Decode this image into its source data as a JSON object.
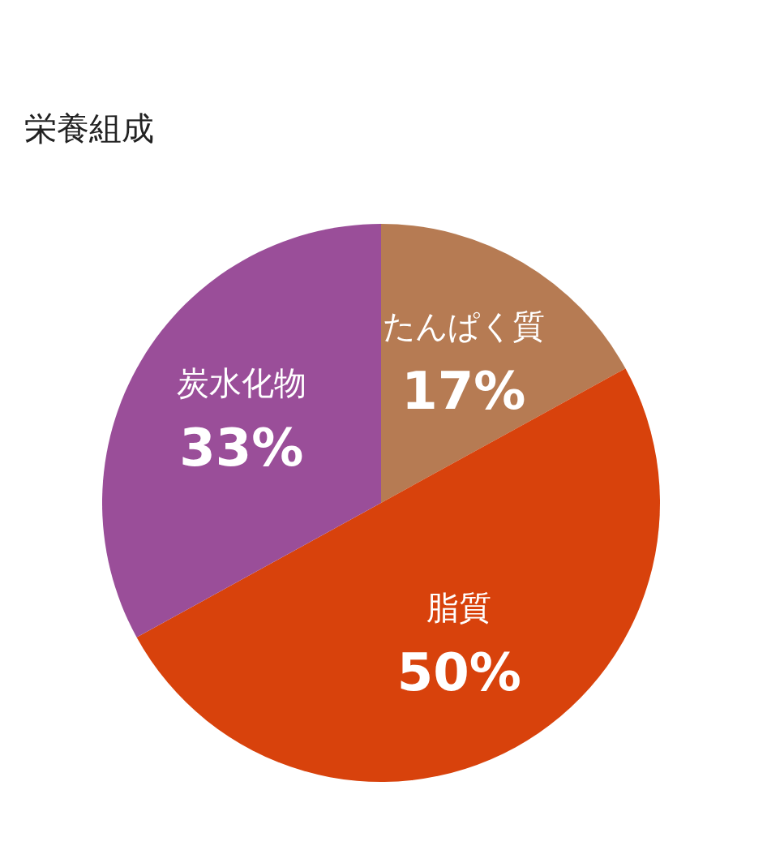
{
  "chart_data": {
    "type": "pie",
    "title": "栄養組成",
    "categories": [
      "たんぱく質",
      "脂質",
      "炭水化物"
    ],
    "values": [
      17,
      50,
      33
    ],
    "colors": [
      "#b67b53",
      "#d8420c",
      "#9a4e99"
    ],
    "value_labels": [
      "17%",
      "50%",
      "33%"
    ],
    "legend": false
  }
}
